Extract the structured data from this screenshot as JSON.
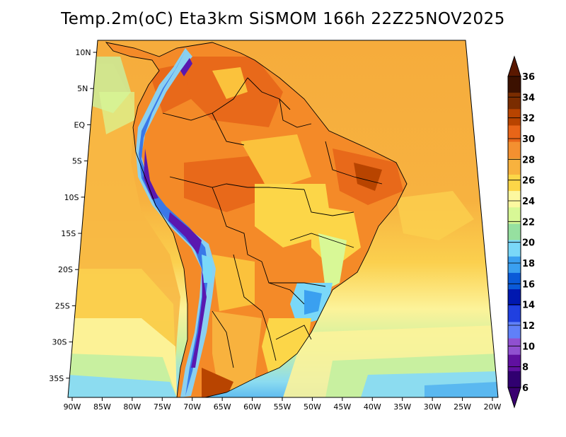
{
  "title": "Temp.2m(oC) Eta3km SiSMOM 166h 22Z25NOV2025",
  "latitude_labels": [
    "10N",
    "5N",
    "EQ",
    "5S",
    "10S",
    "15S",
    "20S",
    "25S",
    "30S",
    "35S"
  ],
  "longitude_labels": [
    "90W",
    "85W",
    "80W",
    "75W",
    "70W",
    "65W",
    "60W",
    "55W",
    "50W",
    "45W",
    "40W",
    "35W",
    "30W",
    "25W",
    "20W"
  ],
  "colorbar": {
    "labels": [
      "36",
      "34",
      "32",
      "30",
      "28",
      "26",
      "24",
      "22",
      "20",
      "18",
      "16",
      "14",
      "12",
      "10",
      "8",
      "6"
    ],
    "colors": [
      "#3c1100",
      "#7a2c00",
      "#b84400",
      "#e86518",
      "#f49030",
      "#f8b23e",
      "#fcd648",
      "#fcf8a0",
      "#d8f896",
      "#96e0a0",
      "#7ad8f8",
      "#3aa0f0",
      "#0a5ad8",
      "#0018b0",
      "#2040e0",
      "#6080f8",
      "#9050d0",
      "#6010a0",
      "#300070"
    ]
  },
  "map_colors": {
    "ocean_warm": "#f6ac3c",
    "ocean_mid": "#fbd04e",
    "ocean_cool": "#fcf39a",
    "ocean_cold": "#c8f0a0",
    "ocean_colder": "#8cdcf0",
    "land_hot": "#e8691a",
    "land_warm": "#f48a28",
    "land_mild": "#fbc23c",
    "andes_high": "#5a18b0",
    "andes_mid": "#3a78e8",
    "andes_low": "#8ad0f0",
    "border": "#000000"
  }
}
